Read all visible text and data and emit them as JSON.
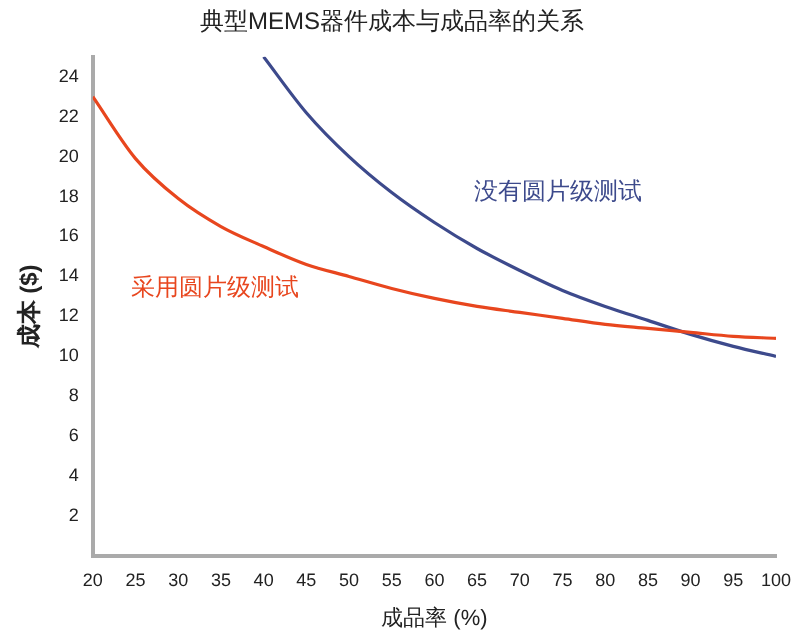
{
  "chart_data": {
    "type": "line",
    "title": "典型MEMS器件成本与成品率的关系",
    "xlabel": "成品率 (%)",
    "ylabel": "成本 ($)",
    "xlim": [
      20,
      100
    ],
    "xticks": [
      20,
      25,
      30,
      35,
      40,
      45,
      50,
      55,
      60,
      65,
      70,
      75,
      80,
      85,
      90,
      95,
      100
    ],
    "ylim": [
      0,
      25
    ],
    "yticks": [
      2,
      4,
      6,
      8,
      10,
      12,
      14,
      16,
      18,
      20,
      22,
      24
    ],
    "grid": false,
    "legend": false,
    "marker": "none",
    "line_style": "solid",
    "series": [
      {
        "name": "采用圆片级测试",
        "color": "#e8461e",
        "x": [
          20,
          25,
          30,
          35,
          40,
          45,
          50,
          55,
          60,
          65,
          70,
          75,
          80,
          85,
          90,
          95,
          100
        ],
        "values": [
          23,
          19.9,
          17.9,
          16.5,
          15.5,
          14.6,
          14.0,
          13.4,
          12.9,
          12.5,
          12.2,
          11.9,
          11.6,
          11.4,
          11.2,
          11.0,
          10.9
        ]
      },
      {
        "name": "没有圆片级测试",
        "color": "#3d4a8c",
        "x": [
          40,
          45,
          50,
          55,
          60,
          65,
          70,
          75,
          80,
          85,
          90,
          95,
          100
        ],
        "values": [
          25,
          22.2,
          20,
          18.2,
          16.7,
          15.4,
          14.3,
          13.3,
          12.5,
          11.8,
          11.1,
          10.5,
          10
        ]
      }
    ]
  }
}
